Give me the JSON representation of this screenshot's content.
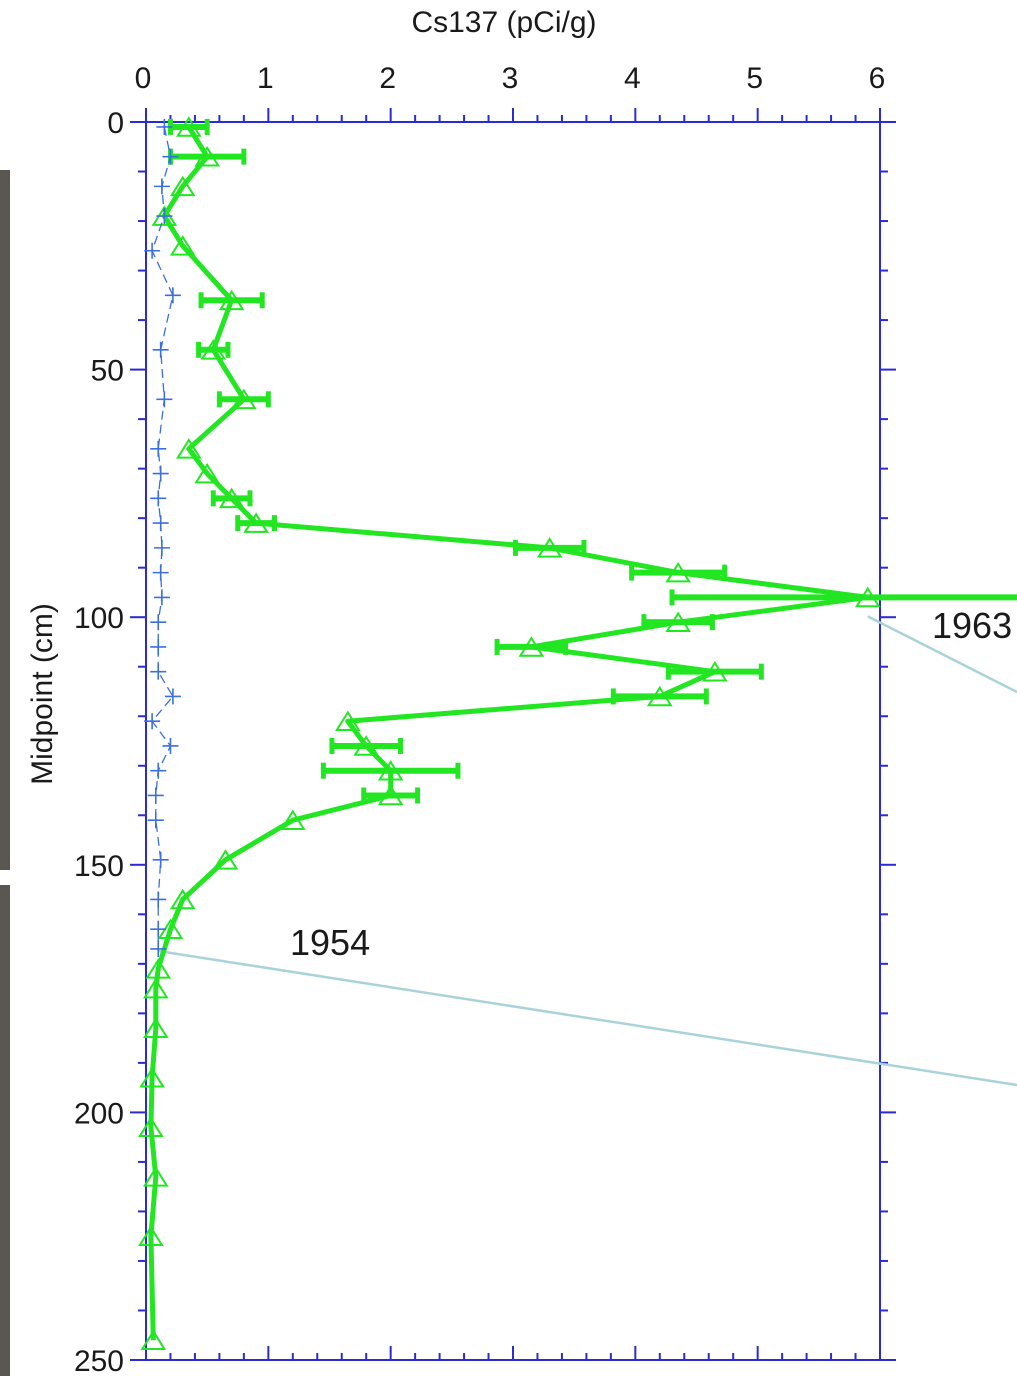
{
  "chart_data": {
    "type": "line",
    "title": "",
    "xlabel": "Cs137 (pCi/g)",
    "ylabel": "Midpoint (cm)",
    "x_axis_position": "top",
    "y_axis_inverted": true,
    "xlim": [
      0,
      6
    ],
    "ylim": [
      0,
      250
    ],
    "x_ticks": [
      "0",
      "1",
      "2",
      "3",
      "4",
      "5",
      "6"
    ],
    "y_ticks": [
      "0",
      "50",
      "100",
      "150",
      "200",
      "250"
    ],
    "grid": false,
    "series": [
      {
        "name": "",
        "color": "#22e622",
        "marker": "triangle",
        "points": [
          {
            "depth": 1,
            "value": 0.35,
            "err": 0.15
          },
          {
            "depth": 7,
            "value": 0.5,
            "err": 0.3
          },
          {
            "depth": 13,
            "value": 0.3
          },
          {
            "depth": 19,
            "value": 0.15
          },
          {
            "depth": 25,
            "value": 0.3
          },
          {
            "depth": 36,
            "value": 0.7,
            "err": 0.25
          },
          {
            "depth": 46,
            "value": 0.55,
            "err": 0.12
          },
          {
            "depth": 56,
            "value": 0.8,
            "err": 0.2
          },
          {
            "depth": 66,
            "value": 0.35
          },
          {
            "depth": 71,
            "value": 0.5
          },
          {
            "depth": 76,
            "value": 0.7,
            "err": 0.15
          },
          {
            "depth": 81,
            "value": 0.9,
            "err": 0.15
          },
          {
            "depth": 86,
            "value": 3.3,
            "err": 0.28
          },
          {
            "depth": 91,
            "value": 4.35,
            "err": 0.38
          },
          {
            "depth": 96,
            "value": 5.9,
            "err": 1.6
          },
          {
            "depth": 101,
            "value": 4.35,
            "err": 0.28
          },
          {
            "depth": 106,
            "value": 3.15,
            "err": 0.28
          },
          {
            "depth": 111,
            "value": 4.65,
            "err": 0.38
          },
          {
            "depth": 116,
            "value": 4.2,
            "err": 0.38
          },
          {
            "depth": 121,
            "value": 1.65
          },
          {
            "depth": 126,
            "value": 1.8,
            "err": 0.28
          },
          {
            "depth": 131,
            "value": 2.0,
            "err": 0.55
          },
          {
            "depth": 136,
            "value": 2.0,
            "err": 0.22
          },
          {
            "depth": 141,
            "value": 1.2
          },
          {
            "depth": 149,
            "value": 0.65
          },
          {
            "depth": 157,
            "value": 0.3
          },
          {
            "depth": 163,
            "value": 0.2
          },
          {
            "depth": 171,
            "value": 0.1
          },
          {
            "depth": 175,
            "value": 0.08
          },
          {
            "depth": 183,
            "value": 0.08
          },
          {
            "depth": 193,
            "value": 0.05
          },
          {
            "depth": 203,
            "value": 0.04
          },
          {
            "depth": 213,
            "value": 0.08
          },
          {
            "depth": 225,
            "value": 0.04
          },
          {
            "depth": 246,
            "value": 0.06
          }
        ]
      },
      {
        "name": "",
        "color": "#3b6fe0",
        "marker": "plus",
        "points": [
          {
            "depth": 1,
            "value": 0.15
          },
          {
            "depth": 7,
            "value": 0.2
          },
          {
            "depth": 13,
            "value": 0.13
          },
          {
            "depth": 19,
            "value": 0.15
          },
          {
            "depth": 26,
            "value": 0.05
          },
          {
            "depth": 35,
            "value": 0.22
          },
          {
            "depth": 46,
            "value": 0.12
          },
          {
            "depth": 56,
            "value": 0.15
          },
          {
            "depth": 66,
            "value": 0.1
          },
          {
            "depth": 71,
            "value": 0.12
          },
          {
            "depth": 76,
            "value": 0.1
          },
          {
            "depth": 81,
            "value": 0.12
          },
          {
            "depth": 86,
            "value": 0.13
          },
          {
            "depth": 91,
            "value": 0.12
          },
          {
            "depth": 96,
            "value": 0.13
          },
          {
            "depth": 101,
            "value": 0.1
          },
          {
            "depth": 106,
            "value": 0.1
          },
          {
            "depth": 111,
            "value": 0.1
          },
          {
            "depth": 116,
            "value": 0.22
          },
          {
            "depth": 121,
            "value": 0.05
          },
          {
            "depth": 126,
            "value": 0.2
          },
          {
            "depth": 131,
            "value": 0.1
          },
          {
            "depth": 136,
            "value": 0.08
          },
          {
            "depth": 141,
            "value": 0.08
          },
          {
            "depth": 149,
            "value": 0.12
          },
          {
            "depth": 157,
            "value": 0.1
          },
          {
            "depth": 163,
            "value": 0.1
          },
          {
            "depth": 167,
            "value": 0.1
          }
        ]
      }
    ],
    "annotations": [
      {
        "text": "1963",
        "depth": 97
      },
      {
        "text": "1954",
        "depth": 167
      }
    ]
  }
}
